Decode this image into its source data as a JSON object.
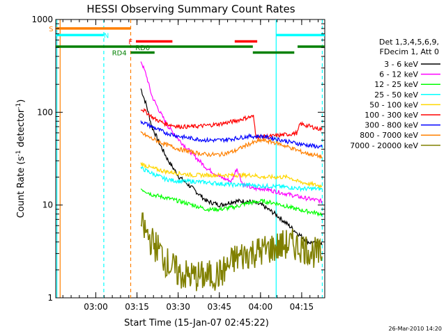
{
  "chart_data": {
    "type": "line",
    "title": "HESSI Observing Summary Count Rates",
    "xlabel": "Start Time (15-Jan-07 02:45:22)",
    "ylabel_main": "Count Rate (s",
    "ylabel_sup1": "-1",
    "ylabel_mid": " detector",
    "ylabel_sup2": "-1",
    "ylabel_end": ")",
    "yscale": "log",
    "ylim": [
      1,
      1000
    ],
    "xlim_minutes": [
      0,
      98
    ],
    "x_ticks": [
      {
        "label": "03:00",
        "t": 14.6
      },
      {
        "label": "03:15",
        "t": 29.6
      },
      {
        "label": "03:30",
        "t": 44.6
      },
      {
        "label": "03:45",
        "t": 59.6
      },
      {
        "label": "04:00",
        "t": 74.6
      },
      {
        "label": "04:15",
        "t": 89.6
      }
    ],
    "y_ticks": [
      {
        "label": "1",
        "v": 1
      },
      {
        "label": "10",
        "v": 10
      },
      {
        "label": "100",
        "v": 100
      },
      {
        "label": "1000",
        "v": 1000
      }
    ],
    "legend_header": [
      "Det 1,3,4,5,6,9,",
      "FDecim 1, Att 0"
    ],
    "series": [
      {
        "name": "3 - 6 keV",
        "color": "#000000",
        "x": [
          31,
          33,
          35,
          38,
          41,
          45,
          50,
          55,
          60,
          65,
          70,
          75,
          80,
          85,
          88,
          92,
          97
        ],
        "y": [
          180,
          120,
          70,
          45,
          30,
          20,
          15,
          11,
          10,
          11,
          11,
          10,
          8,
          6,
          5,
          4,
          3.7
        ]
      },
      {
        "name": "6 - 12 keV",
        "color": "#ff00ff",
        "x": [
          31,
          33,
          35,
          38,
          41,
          45,
          50,
          55,
          60,
          64,
          66,
          68,
          72,
          76,
          80,
          85,
          90,
          97
        ],
        "y": [
          360,
          250,
          150,
          100,
          70,
          50,
          35,
          25,
          20,
          18,
          25,
          17,
          15,
          15,
          14,
          13,
          12,
          11
        ]
      },
      {
        "name": "12 - 25 keV",
        "color": "#00ff00",
        "x": [
          31,
          35,
          40,
          45,
          50,
          55,
          60,
          65,
          70,
          75,
          80,
          85,
          88,
          92,
          97
        ],
        "y": [
          15,
          13,
          12,
          11,
          10,
          9,
          9,
          9.5,
          10.5,
          11,
          10.5,
          9.5,
          9,
          8.5,
          8
        ]
      },
      {
        "name": "25 - 50 keV",
        "color": "#00ffff",
        "x": [
          31,
          35,
          40,
          45,
          50,
          55,
          60,
          65,
          70,
          75,
          80,
          85,
          90,
          97
        ],
        "y": [
          25,
          22,
          19,
          18,
          18,
          17.5,
          17,
          16.5,
          16.5,
          16,
          16,
          15.5,
          15,
          15
        ]
      },
      {
        "name": "50 - 100 keV",
        "color": "#ffd700",
        "x": [
          31,
          35,
          40,
          45,
          50,
          55,
          60,
          65,
          72,
          75,
          80,
          85,
          88,
          92,
          97
        ],
        "y": [
          28,
          25,
          23,
          22,
          21,
          21,
          21,
          21,
          21,
          20,
          20,
          20,
          18,
          17,
          16
        ]
      },
      {
        "name": "100 - 300 keV",
        "color": "#ff0000",
        "x": [
          31,
          33,
          36,
          40,
          45,
          50,
          55,
          60,
          65,
          70,
          72,
          73,
          78,
          85,
          88,
          89,
          93,
          97
        ],
        "y": [
          110,
          100,
          85,
          75,
          70,
          70,
          72,
          75,
          80,
          88,
          90,
          55,
          55,
          58,
          60,
          75,
          70,
          65
        ]
      },
      {
        "name": "300 - 800 keV",
        "color": "#0000ff",
        "x": [
          31,
          35,
          40,
          45,
          50,
          55,
          60,
          65,
          70,
          75,
          80,
          85,
          90,
          97
        ],
        "y": [
          80,
          70,
          60,
          55,
          52,
          50,
          50,
          52,
          55,
          55,
          52,
          48,
          45,
          42
        ]
      },
      {
        "name": "800 - 7000 keV",
        "color": "#ff8000",
        "x": [
          31,
          35,
          40,
          45,
          50,
          55,
          60,
          65,
          70,
          75,
          80,
          85,
          90,
          97
        ],
        "y": [
          60,
          52,
          45,
          40,
          37,
          35,
          35,
          38,
          45,
          50,
          47,
          42,
          37,
          33
        ]
      },
      {
        "name": "7000 - 20000 keV",
        "color": "#808000",
        "x": [
          31,
          33,
          35,
          38,
          40,
          45,
          50,
          55,
          60,
          63,
          65,
          70,
          75,
          80,
          85,
          90,
          95,
          97
        ],
        "y": [
          6,
          5,
          4,
          3.2,
          2.5,
          1.8,
          1.7,
          1.7,
          1.8,
          2.2,
          2.6,
          3,
          3.2,
          3.5,
          3.8,
          3.5,
          3,
          2.8
        ]
      }
    ],
    "status_bars": [
      {
        "label": "S",
        "color": "#ff8000",
        "t0": 0,
        "t1": 27.3,
        "v": 800
      },
      {
        "label": "N",
        "color": "#00ffff",
        "t0": 0,
        "t1": 17.5,
        "v": 680
      },
      {
        "label": "N",
        "color": "#00ffff",
        "t0": 80.3,
        "t1": 98,
        "v": 680
      },
      {
        "label": "F",
        "color": "#ff0000",
        "t0": 29.2,
        "t1": 42.5,
        "v": 580
      },
      {
        "label": "F",
        "color": "#ff0000",
        "t0": 65.2,
        "t1": 73.4,
        "v": 580
      },
      {
        "label": "RD0",
        "color": "#008000",
        "t0": 0,
        "t1": 71.8,
        "v": 510
      },
      {
        "label": "RD0",
        "color": "#008000",
        "t0": 88.1,
        "t1": 98,
        "v": 510
      },
      {
        "label": "RD4",
        "color": "#008000",
        "t0": 27.3,
        "t1": 36,
        "v": 440
      },
      {
        "label": "RD4",
        "color": "#008000",
        "t0": 71.8,
        "t1": 86.9,
        "v": 440
      }
    ],
    "vlines": [
      {
        "t": 0.4,
        "color": "#00ffff",
        "dashed": false
      },
      {
        "t": 1.6,
        "color": "#ff8000",
        "dashed": false
      },
      {
        "t": 17.5,
        "color": "#00ffff",
        "dashed": true
      },
      {
        "t": 27.3,
        "color": "#ff8000",
        "dashed": true
      },
      {
        "t": 80.3,
        "color": "#00ffff",
        "dashed": false
      },
      {
        "t": 97.1,
        "color": "#00ffff",
        "dashed": true
      }
    ],
    "bar_labels": [
      {
        "text": "S",
        "color": "#ff8000",
        "t": -2.5,
        "v": 800
      },
      {
        "text": "N",
        "color": "#00ffff",
        "t": 17.5,
        "v": 680
      },
      {
        "text": "F",
        "color": "#ff0000",
        "t": 26.5,
        "v": 580
      },
      {
        "text": "RD0",
        "color": "#008000",
        "t": 29.0,
        "v": 500
      },
      {
        "text": "RD4",
        "color": "#008000",
        "t": 20.5,
        "v": 440
      }
    ],
    "footer_date": "26-Mar-2010 14:20"
  }
}
